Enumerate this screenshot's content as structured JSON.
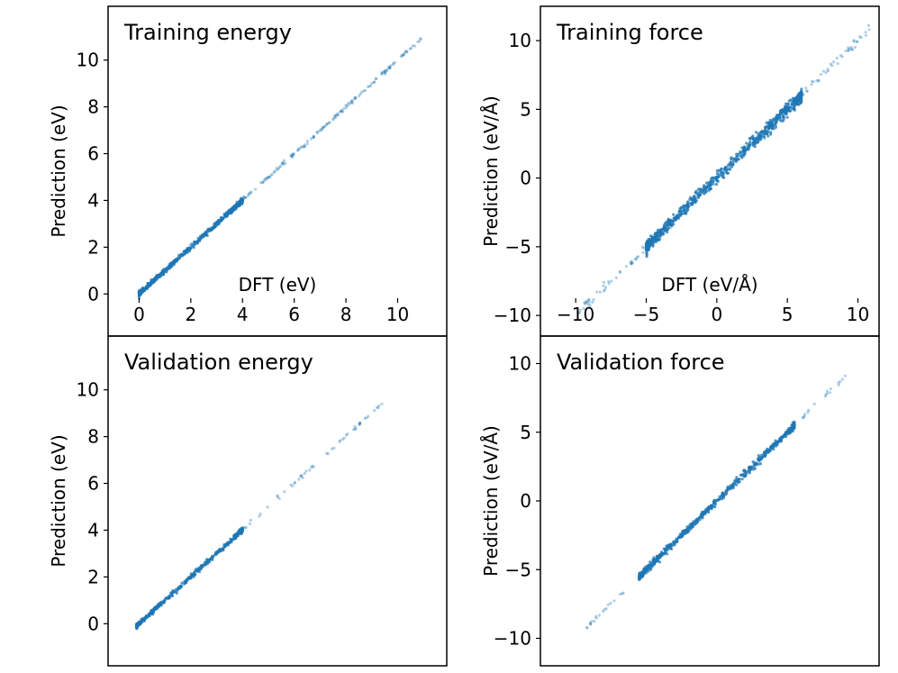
{
  "figure": {
    "layout": "2x2 grid of scatter plots"
  },
  "chart_data": [
    {
      "id": "train-energy",
      "type": "scatter",
      "title": "Training energy",
      "xlabel": "DFT (eV)",
      "ylabel": "Prediction (eV)",
      "xlim": [
        -1.2,
        11.9
      ],
      "ylim": [
        -1.8,
        12.3
      ],
      "xticks": [
        0,
        2,
        4,
        6,
        8,
        10
      ],
      "yticks": [
        0,
        2,
        4,
        6,
        8,
        10
      ],
      "show_x_axis": true,
      "series": [
        {
          "name": "training energy",
          "color": "#1f77b4",
          "min": 0.0,
          "max": 10.9,
          "dense_max": 4.0,
          "spread": 0.05,
          "n_dense": 520,
          "n_sparse": 230
        }
      ]
    },
    {
      "id": "train-force",
      "type": "scatter",
      "title": "Training force",
      "xlabel": "DFT (eV/Å)",
      "ylabel": "Prediction (eV/Å)",
      "xlim": [
        -12.5,
        11.5
      ],
      "ylim": [
        -11.5,
        12.5
      ],
      "xticks": [
        -10,
        -5,
        0,
        5,
        10
      ],
      "xtick_labels": [
        "−10",
        "−5",
        "0",
        "5",
        "10"
      ],
      "yticks": [
        -10,
        -5,
        0,
        5,
        10
      ],
      "ytick_labels": [
        "−10",
        "−5",
        "0",
        "5",
        "10"
      ],
      "show_x_axis": true,
      "series": [
        {
          "name": "training force",
          "color": "#1f77b4",
          "min": -9.8,
          "max": 10.8,
          "dense_min": -5.0,
          "dense_max": 6.0,
          "spread": 0.22,
          "n_dense": 700,
          "n_sparse": 160
        }
      ]
    },
    {
      "id": "val-energy",
      "type": "scatter",
      "title": "Validation energy",
      "xlabel": "",
      "ylabel": "Prediction (eV)",
      "xlim": [
        -1.2,
        11.9
      ],
      "ylim": [
        -1.8,
        12.3
      ],
      "xticks": [],
      "yticks": [
        0,
        2,
        4,
        6,
        8,
        10
      ],
      "show_x_axis": false,
      "series": [
        {
          "name": "validation energy",
          "color": "#1f77b4",
          "min": -0.1,
          "max": 9.4,
          "dense_max": 4.0,
          "spread": 0.05,
          "n_dense": 420,
          "n_sparse": 90
        }
      ]
    },
    {
      "id": "val-force",
      "type": "scatter",
      "title": "Validation force",
      "xlabel": "",
      "ylabel": "Prediction (eV/Å)",
      "xlim": [
        -12.5,
        11.5
      ],
      "ylim": [
        -12.0,
        12.0
      ],
      "xticks": [],
      "yticks": [
        -10,
        -5,
        0,
        5,
        10
      ],
      "ytick_labels": [
        "−10",
        "−5",
        "0",
        "5",
        "10"
      ],
      "show_x_axis": false,
      "series": [
        {
          "name": "validation force",
          "color": "#1f77b4",
          "min": -9.2,
          "max": 9.1,
          "dense_min": -5.5,
          "dense_max": 5.5,
          "spread": 0.12,
          "n_dense": 620,
          "n_sparse": 70
        }
      ]
    }
  ]
}
